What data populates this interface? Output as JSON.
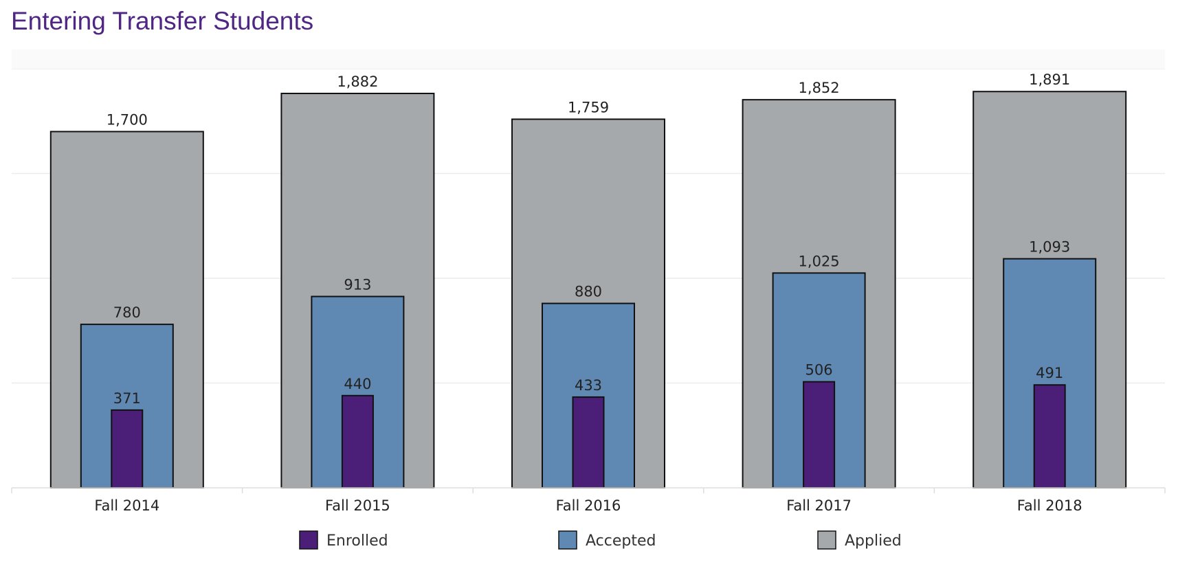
{
  "page": {
    "title": "Entering Transfer Students"
  },
  "colors": {
    "title": "#4f2683",
    "enrolled": "#4b1e78",
    "accepted": "#5f89b3",
    "applied": "#a5a9ac",
    "grid": "#ececec",
    "outline": "#111111"
  },
  "chart_data": {
    "type": "bar",
    "categories": [
      "Fall 2014",
      "Fall 2015",
      "Fall 2016",
      "Fall 2017",
      "Fall 2018"
    ],
    "series": [
      {
        "name": "Applied",
        "values": [
          1700,
          1882,
          1759,
          1852,
          1891
        ],
        "labels": [
          "1,700",
          "1,882",
          "1,759",
          "1,852",
          "1,891"
        ]
      },
      {
        "name": "Accepted",
        "values": [
          780,
          913,
          880,
          1025,
          1093
        ],
        "labels": [
          "780",
          "913",
          "880",
          "1,025",
          "1,093"
        ]
      },
      {
        "name": "Enrolled",
        "values": [
          371,
          440,
          433,
          506,
          491
        ],
        "labels": [
          "371",
          "440",
          "433",
          "506",
          "491"
        ]
      }
    ],
    "legend": [
      "Enrolled",
      "Accepted",
      "Applied"
    ],
    "legend_position": "bottom",
    "ylim": [
      0,
      2000
    ],
    "grid": true,
    "overlapping_bars": true
  }
}
